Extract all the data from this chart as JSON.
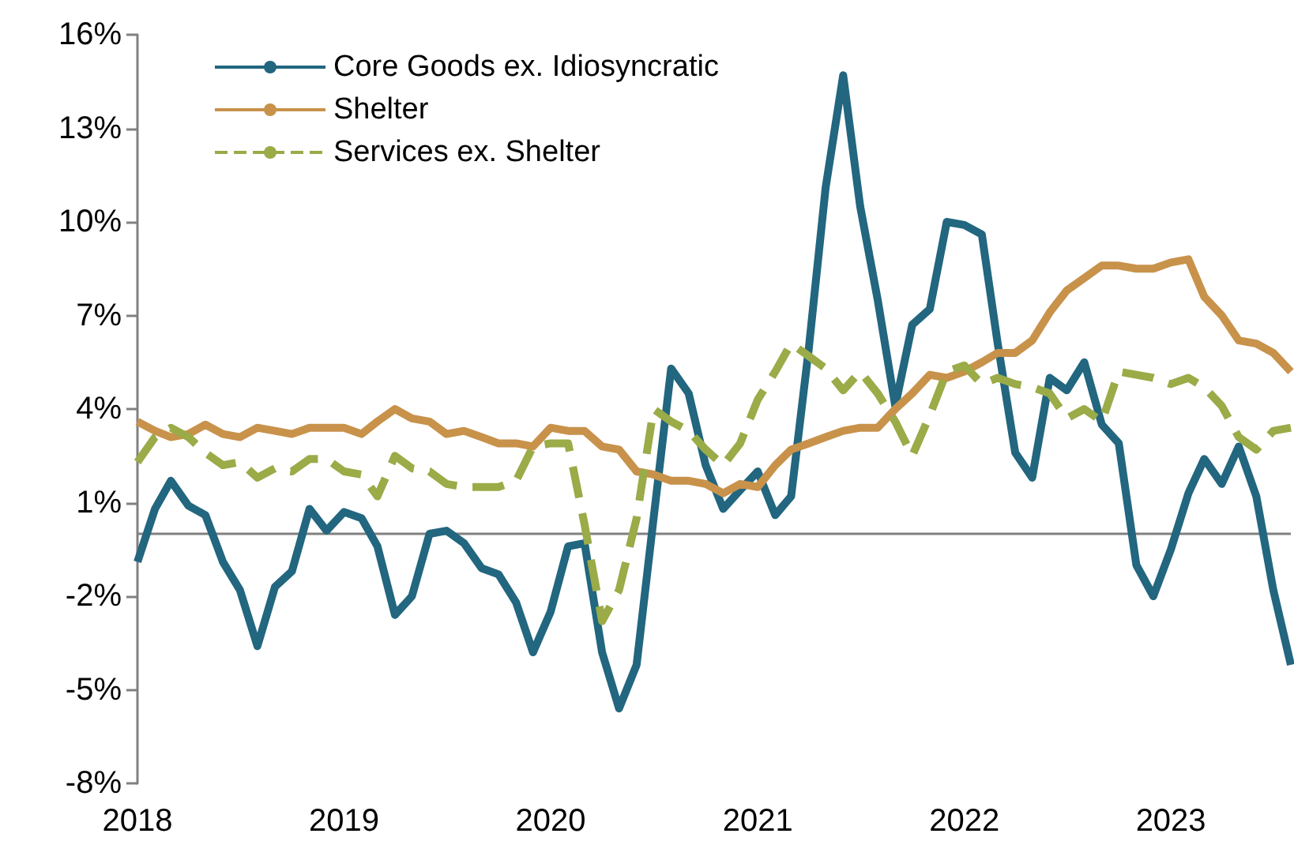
{
  "chart_data": {
    "type": "line",
    "x": [
      "2018-01",
      "2018-02",
      "2018-03",
      "2018-04",
      "2018-05",
      "2018-06",
      "2018-07",
      "2018-08",
      "2018-09",
      "2018-10",
      "2018-11",
      "2018-12",
      "2019-01",
      "2019-02",
      "2019-03",
      "2019-04",
      "2019-05",
      "2019-06",
      "2019-07",
      "2019-08",
      "2019-09",
      "2019-10",
      "2019-11",
      "2019-12",
      "2020-01",
      "2020-02",
      "2020-03",
      "2020-04",
      "2020-05",
      "2020-06",
      "2020-07",
      "2020-08",
      "2020-09",
      "2020-10",
      "2020-11",
      "2020-12",
      "2021-01",
      "2021-02",
      "2021-03",
      "2021-04",
      "2021-05",
      "2021-06",
      "2021-07",
      "2021-08",
      "2021-09",
      "2021-10",
      "2021-11",
      "2021-12",
      "2022-01",
      "2022-02",
      "2022-03",
      "2022-04",
      "2022-05",
      "2022-06",
      "2022-07",
      "2022-08",
      "2022-09",
      "2022-10",
      "2022-11",
      "2022-12",
      "2023-01",
      "2023-02",
      "2023-03",
      "2023-04",
      "2023-05",
      "2023-06",
      "2023-07",
      "2023-08"
    ],
    "series": [
      {
        "name": "Core Goods ex. Idiosyncratic",
        "color": "#22667f",
        "line_style": "solid",
        "values": [
          -0.9,
          0.8,
          1.7,
          0.9,
          0.6,
          -0.9,
          -1.8,
          -3.6,
          -1.7,
          -1.2,
          0.8,
          0.1,
          0.7,
          0.5,
          -0.4,
          -2.6,
          -2.0,
          0.0,
          0.1,
          -0.3,
          -1.1,
          -1.3,
          -2.2,
          -3.8,
          -2.5,
          -0.4,
          -0.3,
          -3.8,
          -5.6,
          -4.2,
          0.5,
          5.3,
          4.5,
          2.2,
          0.8,
          1.4,
          2.0,
          0.6,
          1.2,
          5.9,
          11.1,
          14.7,
          10.5,
          7.5,
          4.1,
          6.7,
          7.2,
          10.0,
          9.9,
          9.6,
          6.1,
          2.6,
          1.8,
          5.0,
          4.6,
          5.5,
          3.5,
          2.9,
          -1.0,
          -2.0,
          -0.5,
          1.3,
          2.4,
          1.6,
          2.8,
          1.2,
          -1.8,
          -4.2
        ]
      },
      {
        "name": "Shelter",
        "color": "#c8924b",
        "line_style": "solid",
        "values": [
          3.6,
          3.3,
          3.1,
          3.2,
          3.5,
          3.2,
          3.1,
          3.4,
          3.3,
          3.2,
          3.4,
          3.4,
          3.4,
          3.2,
          3.6,
          4.0,
          3.7,
          3.6,
          3.2,
          3.3,
          3.1,
          2.9,
          2.9,
          2.8,
          3.4,
          3.3,
          3.3,
          2.8,
          2.7,
          2.0,
          1.9,
          1.7,
          1.7,
          1.6,
          1.3,
          1.6,
          1.5,
          2.2,
          2.7,
          2.9,
          3.1,
          3.3,
          3.4,
          3.4,
          4.0,
          4.5,
          5.1,
          5.0,
          5.2,
          5.5,
          5.8,
          5.8,
          6.2,
          7.1,
          7.8,
          8.2,
          8.6,
          8.6,
          8.5,
          8.5,
          8.7,
          8.8,
          7.6,
          7.0,
          6.2,
          6.1,
          5.8,
          5.2
        ]
      },
      {
        "name": "Services ex. Shelter",
        "color": "#9aab48",
        "line_style": "dashed",
        "values": [
          2.3,
          3.1,
          3.4,
          3.1,
          2.6,
          2.2,
          2.3,
          1.8,
          2.1,
          2.0,
          2.4,
          2.4,
          2.0,
          1.9,
          1.2,
          2.5,
          2.1,
          2.0,
          1.6,
          1.5,
          1.5,
          1.5,
          1.7,
          2.8,
          2.9,
          2.9,
          0.3,
          -2.8,
          -1.8,
          0.5,
          4.0,
          3.6,
          3.3,
          2.7,
          2.2,
          2.9,
          4.3,
          5.2,
          6.1,
          5.7,
          5.3,
          4.6,
          5.2,
          4.5,
          3.6,
          2.5,
          3.8,
          5.2,
          5.4,
          4.8,
          5.0,
          4.8,
          4.7,
          4.5,
          3.7,
          4.0,
          3.6,
          5.2,
          5.1,
          5.0,
          4.8,
          5.0,
          4.7,
          4.1,
          3.1,
          2.7,
          3.3,
          3.4
        ]
      }
    ],
    "xlim": [
      "2018-01",
      "2023-08"
    ],
    "xticks": [
      {
        "value": "2018",
        "label": "2018"
      },
      {
        "value": "2019",
        "label": "2019"
      },
      {
        "value": "2020",
        "label": "2020"
      },
      {
        "value": "2021",
        "label": "2021"
      },
      {
        "value": "2022",
        "label": "2022"
      },
      {
        "value": "2023",
        "label": "2023"
      }
    ],
    "ylim": [
      -8,
      16
    ],
    "yticks": [
      {
        "value": -8,
        "label": "-8%"
      },
      {
        "value": -5,
        "label": "-5%"
      },
      {
        "value": -2,
        "label": "-2%"
      },
      {
        "value": 1,
        "label": "1%"
      },
      {
        "value": 4,
        "label": "4%"
      },
      {
        "value": 7,
        "label": "7%"
      },
      {
        "value": 10,
        "label": "10%"
      },
      {
        "value": 13,
        "label": "13%"
      },
      {
        "value": 16,
        "label": "16%"
      }
    ],
    "ref_lines": [
      {
        "axis": "y",
        "value": 0,
        "color": "#808080",
        "line_style": "solid"
      }
    ],
    "grid": false,
    "legend": "top left",
    "marker": "none"
  }
}
